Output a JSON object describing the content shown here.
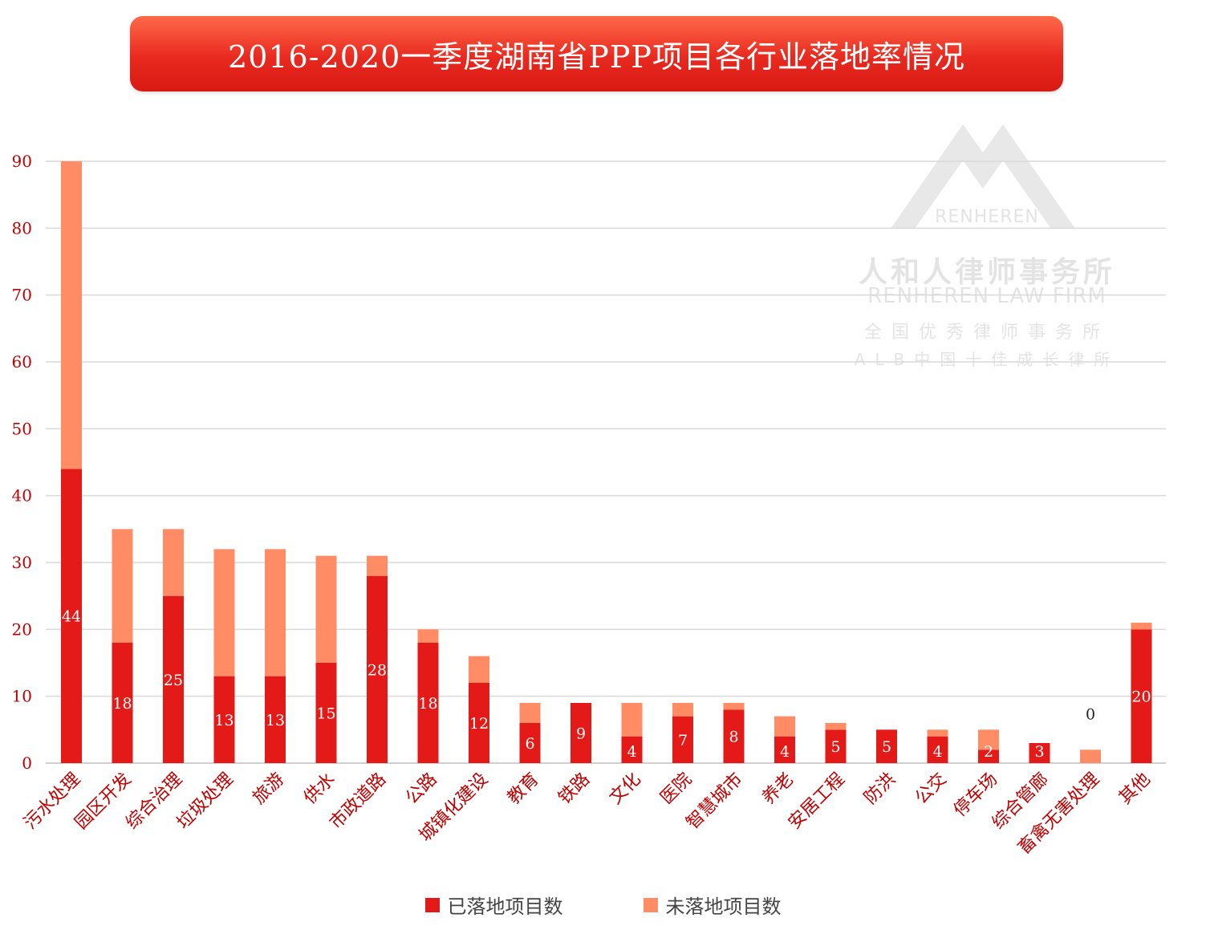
{
  "title": "2016-2020一季度湖南省PPP项目各行业落地率情况",
  "colors": {
    "landed": "#e31a17",
    "not_landed": "#ff8c65",
    "axis_text": "#c00000",
    "grid": "#d9d9d9"
  },
  "watermark": {
    "brand": "RENHEREN",
    "name_cn": "人和人律师事务所",
    "name_en": "RENHEREN LAW FIRM",
    "line3": "全国优秀律师事务所",
    "line4": "ALB中国十佳成长律所"
  },
  "chart_data": {
    "type": "bar",
    "stacked": true,
    "title": "2016-2020一季度湖南省PPP项目各行业落地率情况",
    "categories": [
      "污水处理",
      "园区开发",
      "综合治理",
      "垃圾处理",
      "旅游",
      "供水",
      "市政道路",
      "公路",
      "城镇化建设",
      "教育",
      "铁路",
      "文化",
      "医院",
      "智慧城市",
      "养老",
      "安居工程",
      "防洪",
      "公交",
      "停车场",
      "综合管廊",
      "畜禽无害处理",
      "其他"
    ],
    "series": [
      {
        "name": "已落地项目数",
        "values": [
          44,
          18,
          25,
          13,
          13,
          15,
          28,
          18,
          12,
          6,
          9,
          4,
          7,
          8,
          4,
          5,
          5,
          4,
          2,
          3,
          0,
          20
        ]
      },
      {
        "name": "未落地项目数",
        "values": [
          46,
          17,
          10,
          19,
          19,
          16,
          3,
          2,
          4,
          3,
          0,
          5,
          2,
          1,
          3,
          1,
          0,
          1,
          3,
          0,
          2,
          1
        ]
      }
    ],
    "data_labels": [
      "44",
      "18",
      "25",
      "13",
      "13",
      "15",
      "28",
      "18",
      "12",
      "6",
      "9",
      "4",
      "7",
      "8",
      "4",
      "5",
      "5",
      "4",
      "2",
      "3",
      "0",
      "20"
    ],
    "yticks": [
      "0",
      "10",
      "20",
      "30",
      "40",
      "50",
      "60",
      "70",
      "80",
      "90"
    ],
    "ylim": [
      0,
      90
    ],
    "xlabel": "",
    "ylabel": "",
    "legend": "bottom-center",
    "grid": true
  },
  "legend": {
    "landed_label": "已落地项目数",
    "not_landed_label": "未落地项目数"
  }
}
